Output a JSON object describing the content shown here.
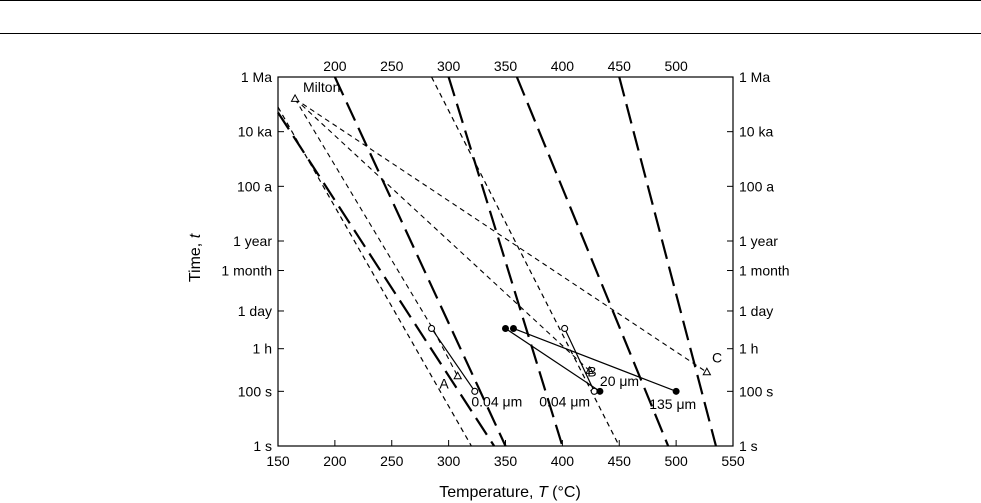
{
  "chart_data": {
    "type": "scatter",
    "xlabel_prefix": "Temperature, ",
    "xlabel_var": "T",
    "xlabel_unit": " (°C)",
    "ylabel_prefix": "Time, ",
    "ylabel_var": "t",
    "xlim": [
      150,
      550
    ],
    "x_ticks_bottom": [
      "150",
      "200",
      "250",
      "300",
      "350",
      "400",
      "450",
      "500",
      "550"
    ],
    "x_ticks_top": [
      "200",
      "250",
      "300",
      "350",
      "400",
      "450",
      "500"
    ],
    "y_ticks": [
      {
        "label": "1 Ma",
        "log10_s": 13.5
      },
      {
        "label": "10 ka",
        "log10_s": 11.5
      },
      {
        "label": "100 a",
        "log10_s": 9.5
      },
      {
        "label": "1 year",
        "log10_s": 7.5
      },
      {
        "label": "1 month",
        "log10_s": 6.42
      },
      {
        "label": "1 day",
        "log10_s": 4.94
      },
      {
        "label": "1 h",
        "log10_s": 3.56
      },
      {
        "label": "100 s",
        "log10_s": 2.0
      },
      {
        "label": "1 s",
        "log10_s": 0.0
      }
    ],
    "isolines_long_dash": [
      {
        "top_T": 200,
        "bottom_T": 350
      },
      {
        "top_T": 300,
        "bottom_T": 400
      },
      {
        "top_T": 360,
        "bottom_T": 493
      },
      {
        "top_T": 450,
        "bottom_T": 535
      },
      {
        "top_T": 150,
        "top_log": 12.2,
        "bottom_T": 340
      }
    ],
    "isolines_short_dash": [
      {
        "top_T": 150,
        "top_log": 12.4,
        "bottom_T": 320
      },
      {
        "top_T": 285,
        "bottom_T": 450
      }
    ],
    "milton_paths": [
      {
        "points": [
          [
            165,
            12.7
          ],
          [
            286,
            4.3
          ],
          [
            308,
            2.55
          ]
        ]
      },
      {
        "points": [
          [
            165,
            12.7
          ],
          [
            424,
            2.75
          ]
        ]
      },
      {
        "points": [
          [
            165,
            12.7
          ],
          [
            527,
            2.7
          ]
        ]
      }
    ],
    "solid_paths": [
      {
        "points": [
          [
            285,
            4.3
          ],
          [
            323,
            2.0
          ]
        ]
      },
      {
        "points": [
          [
            402,
            4.3
          ],
          [
            428,
            2.0
          ]
        ]
      },
      {
        "points": [
          [
            350,
            4.3
          ],
          [
            433,
            2.0
          ]
        ]
      },
      {
        "points": [
          [
            357,
            4.3
          ],
          [
            500,
            2.0
          ]
        ]
      }
    ],
    "points_open_circle": [
      [
        285,
        4.3
      ],
      [
        323,
        2.0
      ],
      [
        402,
        4.3
      ],
      [
        428,
        2.0
      ]
    ],
    "points_filled_circle": [
      [
        350,
        4.3
      ],
      [
        357,
        4.3
      ],
      [
        433,
        2.0
      ],
      [
        500,
        2.0
      ]
    ],
    "points_triangle": [
      [
        165,
        12.7
      ],
      [
        308,
        2.55
      ],
      [
        424,
        2.75
      ],
      [
        527,
        2.7
      ]
    ],
    "annotations": [
      {
        "text": "Milton",
        "T": 172,
        "log": 12.95,
        "anchor": "start"
      },
      {
        "text": "A",
        "T": 296,
        "log": 2.1,
        "anchor": "middle"
      },
      {
        "text": "B",
        "T": 426,
        "log": 2.55,
        "anchor": "middle"
      },
      {
        "text": "C",
        "T": 536,
        "log": 3.05,
        "anchor": "middle"
      },
      {
        "text": "0.04 μm",
        "T": 320,
        "log": 1.45,
        "anchor": "start"
      },
      {
        "text": "0.04 μm",
        "T": 402,
        "log": 1.45,
        "anchor": "middle"
      },
      {
        "text": "20 μm",
        "T": 433,
        "log": 2.2,
        "anchor": "start"
      },
      {
        "text": "135 μm",
        "T": 497,
        "log": 1.35,
        "anchor": "middle"
      }
    ]
  }
}
